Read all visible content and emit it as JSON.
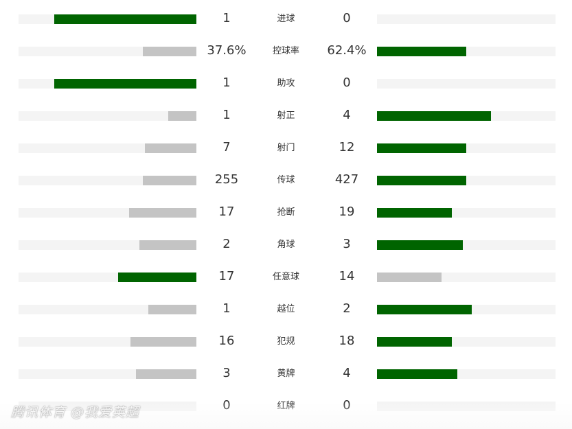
{
  "colors": {
    "leader": "#006400",
    "trailer": "#c4c4c4",
    "track": "#f4f4f4"
  },
  "watermark": "腾讯体育 @我爱英超",
  "stats": [
    {
      "label": "进球",
      "home": "1",
      "away": "0",
      "home_fill": 0.8,
      "away_fill": 0,
      "leader": "home"
    },
    {
      "label": "控球率",
      "home": "37.6%",
      "away": "62.4%",
      "home_fill": 0.3,
      "away_fill": 0.5,
      "leader": "away"
    },
    {
      "label": "助攻",
      "home": "1",
      "away": "0",
      "home_fill": 0.8,
      "away_fill": 0,
      "leader": "home"
    },
    {
      "label": "射正",
      "home": "1",
      "away": "4",
      "home_fill": 0.16,
      "away_fill": 0.64,
      "leader": "away"
    },
    {
      "label": "射门",
      "home": "7",
      "away": "12",
      "home_fill": 0.29,
      "away_fill": 0.5,
      "leader": "away"
    },
    {
      "label": "传球",
      "home": "255",
      "away": "427",
      "home_fill": 0.3,
      "away_fill": 0.5,
      "leader": "away"
    },
    {
      "label": "抢断",
      "home": "17",
      "away": "19",
      "home_fill": 0.38,
      "away_fill": 0.42,
      "leader": "away"
    },
    {
      "label": "角球",
      "home": "2",
      "away": "3",
      "home_fill": 0.32,
      "away_fill": 0.48,
      "leader": "away"
    },
    {
      "label": "任意球",
      "home": "17",
      "away": "14",
      "home_fill": 0.44,
      "away_fill": 0.36,
      "leader": "home"
    },
    {
      "label": "越位",
      "home": "1",
      "away": "2",
      "home_fill": 0.27,
      "away_fill": 0.53,
      "leader": "away"
    },
    {
      "label": "犯规",
      "home": "16",
      "away": "18",
      "home_fill": 0.37,
      "away_fill": 0.42,
      "leader": "away"
    },
    {
      "label": "黄牌",
      "home": "3",
      "away": "4",
      "home_fill": 0.34,
      "away_fill": 0.45,
      "leader": "away"
    },
    {
      "label": "红牌",
      "home": "0",
      "away": "0",
      "home_fill": 0,
      "away_fill": 0,
      "leader": "none"
    }
  ]
}
